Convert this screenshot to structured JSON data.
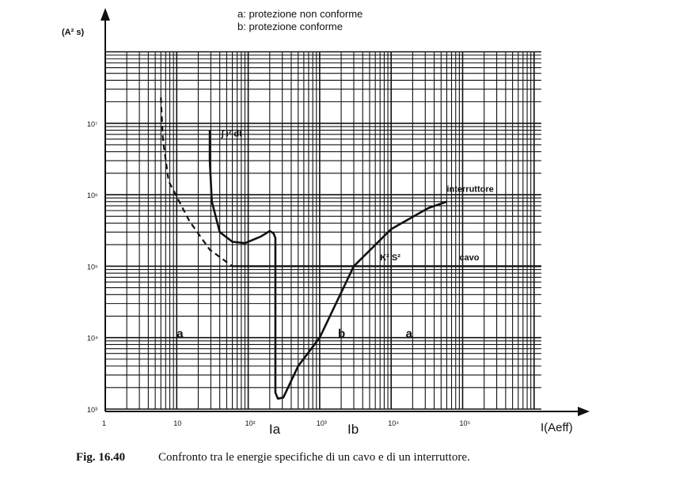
{
  "chart_data": {
    "type": "line",
    "scale": "log-log",
    "legend": [
      "a: protezione non conforme",
      "b: protezione conforme"
    ],
    "ylabel": "(A² s)",
    "xlabel": "I(Aeff)",
    "xlim": [
      1,
      1260000
    ],
    "ylim": [
      1000,
      100000000
    ],
    "x_ticks": [
      {
        "v": 1,
        "label": "1"
      },
      {
        "v": 10,
        "label": "10"
      },
      {
        "v": 100,
        "label": "10²"
      },
      {
        "v": 1000,
        "label": "10³"
      },
      {
        "v": 10000,
        "label": "10⁴"
      },
      {
        "v": 100000,
        "label": "10⁵"
      }
    ],
    "y_ticks": [
      {
        "v": 1000,
        "label": "10³"
      },
      {
        "v": 10000,
        "label": "10⁴"
      },
      {
        "v": 100000,
        "label": "10⁵"
      },
      {
        "v": 1000000,
        "label": "10⁶"
      },
      {
        "v": 10000000,
        "label": "10⁷"
      }
    ],
    "grid": true,
    "series": [
      {
        "name": "cavo (K² S²)",
        "style": "dashed-then-solid",
        "points": [
          [
            6,
            23000000
          ],
          [
            6.4,
            6000000
          ],
          [
            7.7,
            1550000
          ],
          [
            15,
            430000
          ],
          [
            29,
            170000
          ],
          [
            60,
            100000
          ],
          [
            1260000,
            100000
          ]
        ]
      },
      {
        "name": "interruttore (∫i² dt)",
        "style": "solid",
        "points": [
          [
            29,
            8000000
          ],
          [
            29,
            3000000
          ],
          [
            31,
            800000
          ],
          [
            40,
            300000
          ],
          [
            60,
            220000
          ],
          [
            90,
            210000
          ],
          [
            150,
            260000
          ],
          [
            200,
            310000
          ],
          [
            225,
            290000
          ],
          [
            240,
            250000
          ],
          [
            240,
            1700
          ],
          [
            260,
            1400
          ],
          [
            310,
            1450
          ],
          [
            500,
            4000
          ],
          [
            1000,
            10000
          ],
          [
            3000,
            100000
          ],
          [
            10000,
            330000
          ],
          [
            33000,
            650000
          ],
          [
            60000,
            800000
          ]
        ]
      }
    ],
    "markers": [
      {
        "label": "Ia",
        "x": 240
      },
      {
        "label": "Ib",
        "x": 3000
      }
    ],
    "annotations": [
      {
        "text": "a",
        "x": 10,
        "y": 10000
      },
      {
        "text": "b",
        "x": 1800,
        "y": 10000
      },
      {
        "text": "a",
        "x": 16000,
        "y": 10000
      },
      {
        "text": "K² S²",
        "x": 7000,
        "y": 120000
      },
      {
        "text": "cavo",
        "x": 90000,
        "y": 120000
      },
      {
        "text": "interruttore",
        "x": 60000,
        "y": 1100000
      },
      {
        "text": "∫ i² dt",
        "x": 42,
        "y": 6500000
      }
    ]
  },
  "caption": {
    "fig": "Fig. 16.40",
    "text": "Confronto tra le energie specifiche di un cavo e di un interruttore."
  }
}
